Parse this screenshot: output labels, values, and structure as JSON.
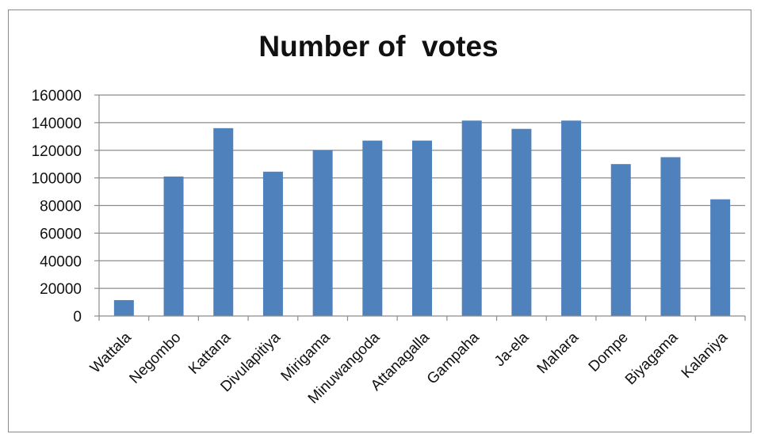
{
  "chart_data": {
    "type": "bar",
    "title": "Number of  votes",
    "xlabel": "",
    "ylabel": "",
    "categories": [
      "Wattala",
      "Negombo",
      "Kattana",
      "Divulapitiya",
      "Mirigama",
      "Minuwangoda",
      "Attanagalla",
      "Gampaha",
      "Ja-ela",
      "Mahara",
      "Dompe",
      "Biyagama",
      "Kalaniya"
    ],
    "values": [
      11500,
      101000,
      136000,
      104500,
      120000,
      127000,
      127000,
      141500,
      135500,
      141500,
      110000,
      115000,
      84500
    ],
    "ylim": [
      0,
      160000
    ],
    "yticks": [
      "0",
      "20000",
      "40000",
      "60000",
      "80000",
      "100000",
      "120000",
      "140000",
      "160000"
    ],
    "grid": true,
    "legend": "none",
    "bar_color": "#4f81bd",
    "grid_color": "#8c8c8c"
  }
}
